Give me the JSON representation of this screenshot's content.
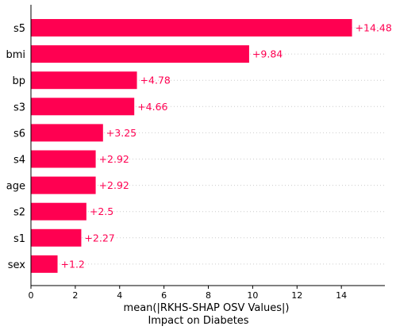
{
  "chart_data": {
    "type": "bar",
    "orientation": "horizontal",
    "categories": [
      "s5",
      "bmi",
      "bp",
      "s3",
      "s6",
      "s4",
      "age",
      "s2",
      "s1",
      "sex"
    ],
    "values": [
      14.48,
      9.84,
      4.78,
      4.66,
      3.25,
      2.92,
      2.92,
      2.5,
      2.27,
      1.2
    ],
    "value_labels": [
      "+14.48",
      "+9.84",
      "+4.78",
      "+4.66",
      "+3.25",
      "+2.92",
      "+2.92",
      "+2.5",
      "+2.27",
      "+1.2"
    ],
    "xlabel_line1": "mean(|RKHS-SHAP OSV Values|)",
    "xlabel_line2": "Impact on Diabetes",
    "xlim": [
      0,
      16
    ],
    "xticks": [
      0,
      2,
      4,
      6,
      8,
      10,
      12,
      14
    ],
    "bar_color": "#ff0051",
    "label_color": "#ff0051",
    "grid": "dotted-horizontal"
  }
}
